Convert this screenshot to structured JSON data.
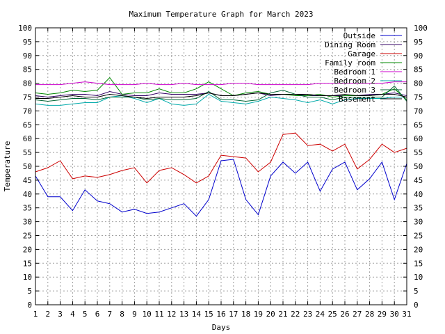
{
  "chart_data": {
    "type": "line",
    "title": "Maximum Temperature Graph for March 2023",
    "xlabel": "Days",
    "ylabel": "Temperature",
    "xlim": [
      1,
      31
    ],
    "ylim": [
      0,
      100
    ],
    "x_ticks": [
      1,
      2,
      3,
      4,
      5,
      6,
      7,
      8,
      9,
      10,
      11,
      12,
      13,
      14,
      15,
      16,
      17,
      18,
      19,
      20,
      21,
      22,
      23,
      24,
      25,
      26,
      27,
      28,
      29,
      30,
      31
    ],
    "y_ticks": [
      0,
      5,
      10,
      15,
      20,
      25,
      30,
      35,
      40,
      45,
      50,
      55,
      60,
      65,
      70,
      75,
      80,
      85,
      90,
      95,
      100
    ],
    "y_axis_mirrored": true,
    "grid": true,
    "legend_position": "top-right",
    "x": [
      1,
      2,
      3,
      4,
      5,
      6,
      7,
      8,
      9,
      10,
      11,
      12,
      13,
      14,
      15,
      16,
      17,
      18,
      19,
      20,
      21,
      22,
      23,
      24,
      25,
      26,
      27,
      28,
      29,
      30,
      31
    ],
    "series": [
      {
        "name": "Outside",
        "color": "#0000cc",
        "values": [
          46.5,
          39,
          39,
          34,
          41.5,
          37.5,
          36.5,
          33.5,
          34.5,
          33,
          33.5,
          35,
          36.5,
          32,
          38,
          52,
          52.5,
          38,
          32.5,
          46.5,
          51.5,
          47.5,
          51.5,
          41,
          49,
          51.5,
          41.5,
          45.5,
          51.5,
          38,
          51
        ]
      },
      {
        "name": "Dining Room",
        "color": "#330066",
        "values": [
          75.5,
          75,
          75.5,
          76,
          76,
          75.5,
          77,
          76,
          75.5,
          75.5,
          76.5,
          76,
          76,
          76,
          76.5,
          75.5,
          75.5,
          76,
          76.5,
          75.5,
          76,
          76,
          75.5,
          75.5,
          75.5,
          75.5,
          75.5,
          76,
          76,
          76.5,
          75.5
        ]
      },
      {
        "name": "Garage",
        "color": "#cc0000",
        "values": [
          48,
          49.5,
          52,
          45.5,
          46.5,
          46,
          47,
          48.5,
          49.5,
          44,
          48.5,
          49.5,
          47,
          44,
          46.5,
          54,
          53.5,
          53,
          48,
          51.5,
          61.5,
          62,
          57.5,
          58,
          55.5,
          58,
          49,
          52.5,
          58,
          55,
          56.5
        ]
      },
      {
        "name": "Family room",
        "color": "#008800",
        "values": [
          76.5,
          76,
          76.5,
          77.5,
          77,
          77.5,
          82,
          76,
          76.5,
          76.5,
          78,
          76.5,
          76.5,
          78,
          80.5,
          78,
          75.5,
          76.5,
          77,
          76,
          76,
          75.5,
          75.5,
          76,
          75,
          75.5,
          75.5,
          75.5,
          76,
          78,
          74
        ]
      },
      {
        "name": "Bedroom 1",
        "color": "#cc00cc",
        "values": [
          79.5,
          79.5,
          79.5,
          80,
          80.5,
          80,
          79.5,
          79.5,
          79.5,
          80,
          79.5,
          79.5,
          80,
          79.5,
          79.5,
          79.5,
          80,
          80,
          79.5,
          79.5,
          79.5,
          79.5,
          79.5,
          80,
          80,
          80,
          80,
          80,
          80,
          80.5,
          80.5
        ]
      },
      {
        "name": "Bedroom 2",
        "color": "#00aaaa",
        "values": [
          72.5,
          72,
          72,
          72.5,
          73,
          73,
          75,
          75.5,
          74.5,
          73,
          74.5,
          72.5,
          72,
          72.5,
          76,
          73.5,
          73,
          72.5,
          73.5,
          75,
          74.5,
          74,
          73,
          74,
          72.5,
          74,
          74.5,
          74.5,
          74.5,
          75,
          75
        ]
      },
      {
        "name": "Bedroom 3",
        "color": "#006633",
        "values": [
          74,
          73.5,
          74,
          74.5,
          74.5,
          74,
          75,
          75,
          75,
          74,
          74.5,
          74,
          74,
          74.5,
          77,
          74,
          74,
          73.5,
          74,
          76.5,
          77.5,
          76,
          75,
          75,
          74,
          75,
          75,
          75,
          75,
          79,
          73.5
        ]
      },
      {
        "name": "Basement",
        "color": "#000000",
        "values": [
          74.5,
          74.5,
          75,
          75.5,
          75,
          75,
          76,
          75.5,
          75,
          74.5,
          75,
          75,
          75,
          75.5,
          76.5,
          75.5,
          75.5,
          76,
          76.5,
          76,
          76,
          76,
          76,
          75.5,
          75.5,
          76,
          75.5,
          75.5,
          76,
          76,
          75
        ]
      }
    ]
  }
}
